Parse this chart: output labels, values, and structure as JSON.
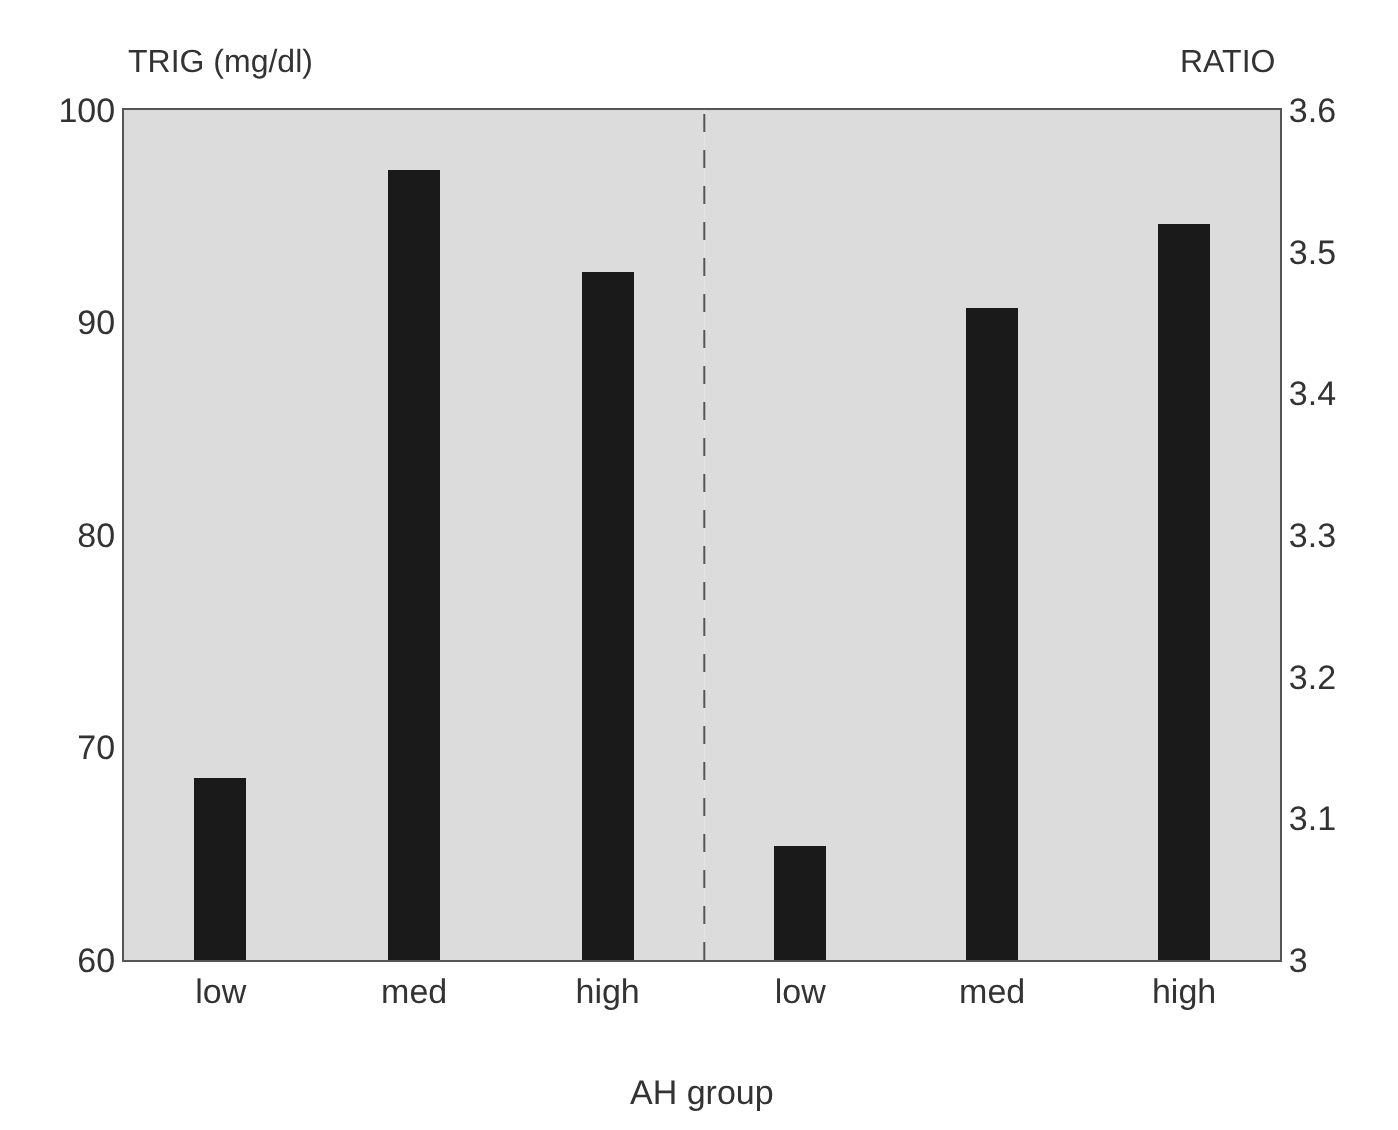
{
  "chart_data": [
    {
      "type": "bar",
      "categories": [
        "low",
        "med",
        "high"
      ],
      "xlabel": "AH group",
      "ylabel": "TRIG (mg/dl)",
      "ylim": [
        60,
        100
      ],
      "yticks": [
        60,
        70,
        80,
        90,
        100
      ],
      "series": [
        {
          "color": "#1a1a1a",
          "values": [
            68.6,
            97.2,
            92.4
          ]
        }
      ]
    },
    {
      "type": "bar",
      "categories": [
        "low",
        "med",
        "high"
      ],
      "y2label": "RATIO",
      "y2lim": [
        3,
        3.6
      ],
      "y2ticks": [
        3,
        3.1,
        3.2,
        3.3,
        3.4,
        3.5,
        3.6
      ],
      "series": [
        {
          "color": "#1a1a1a",
          "values": [
            3.08,
            3.46,
            3.52
          ],
          "axis": "y2"
        }
      ]
    }
  ]
}
